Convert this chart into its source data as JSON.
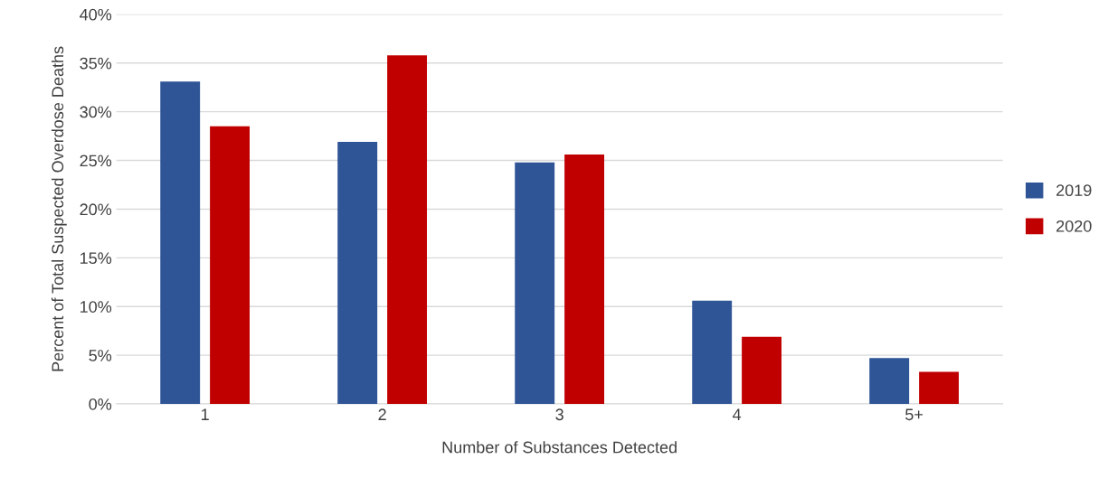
{
  "chart_data": {
    "type": "bar",
    "xlabel": "Number of Substances Detected",
    "ylabel": "Percent of Total Suspected Overdose Deaths",
    "categories": [
      "1",
      "2",
      "3",
      "4",
      "5+"
    ],
    "series": [
      {
        "name": "2019",
        "color": "#2f5597",
        "values": [
          33.1,
          26.9,
          24.8,
          10.6,
          4.7
        ]
      },
      {
        "name": "2020",
        "color": "#c00000",
        "values": [
          28.5,
          35.8,
          25.6,
          6.9,
          3.3
        ]
      }
    ],
    "ylim": [
      0,
      40
    ],
    "yticks": [
      {
        "value": 0,
        "label": "0%"
      },
      {
        "value": 5,
        "label": "5%"
      },
      {
        "value": 10,
        "label": "10%"
      },
      {
        "value": 15,
        "label": "15%"
      },
      {
        "value": 20,
        "label": "20%"
      },
      {
        "value": 25,
        "label": "25%"
      },
      {
        "value": 30,
        "label": "30%"
      },
      {
        "value": 35,
        "label": "35%"
      },
      {
        "value": 40,
        "label": "40%"
      }
    ],
    "grid": "y",
    "legend": "right"
  }
}
